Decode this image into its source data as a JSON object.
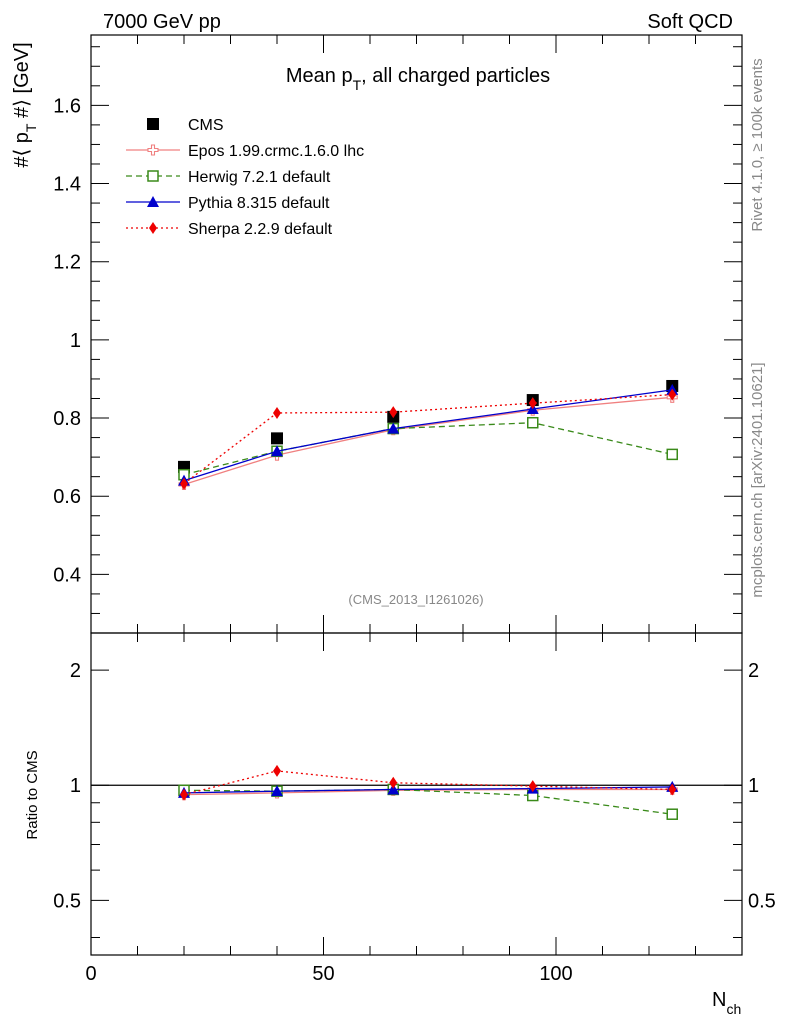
{
  "header": {
    "left": "7000 GeV pp",
    "right": "Soft QCD"
  },
  "side_labels": {
    "rivet": "Rivet 4.1.0, ≥ 100k events",
    "mcplots": "mcplots.cern.ch [arXiv:2401.10621]"
  },
  "chart_data": [
    {
      "type": "scatter",
      "panel": "main",
      "title": "Mean p_T, all charged particles",
      "title_parts": {
        "pre": "Mean p",
        "sub": "T",
        "post": ", all charged particles"
      },
      "ylabel_parts": {
        "pre": "#⟨ p",
        "sub": "T",
        "post": " #⟩ [GeV]"
      },
      "watermark": "(CMS_2013_I1261026)",
      "xlim": [
        0,
        140
      ],
      "ylim": [
        0.25,
        1.78
      ],
      "x_ticks": [
        0,
        50,
        100
      ],
      "y_ticks": [
        0.4,
        0.6,
        0.8,
        1.0,
        1.2,
        1.4,
        1.6
      ],
      "y_tick_labels": [
        "0.4",
        "0.6",
        "0.8",
        "1",
        "1.2",
        "1.4",
        "1.6"
      ],
      "legend_position": "top-left",
      "series": [
        {
          "name": "CMS",
          "color": "#000000",
          "marker": "square-filled",
          "line": "none",
          "x": [
            20,
            40,
            65,
            95,
            125
          ],
          "y": [
            0.675,
            0.748,
            0.803,
            0.846,
            0.882
          ]
        },
        {
          "name": "Epos 1.99.crmc.1.6.0 lhc",
          "color": "#f08080",
          "marker": "cross-open",
          "line": "solid",
          "x": [
            20,
            40,
            65,
            95,
            125
          ],
          "y": [
            0.63,
            0.705,
            0.77,
            0.82,
            0.853
          ]
        },
        {
          "name": "Herwig 7.2.1 default",
          "color": "#3a8a1a",
          "marker": "square-open",
          "line": "dashed",
          "x": [
            20,
            40,
            65,
            95,
            125
          ],
          "y": [
            0.655,
            0.715,
            0.773,
            0.788,
            0.707
          ]
        },
        {
          "name": "Pythia 8.315 default",
          "color": "#0000cc",
          "marker": "triangle-filled",
          "line": "solid",
          "x": [
            20,
            40,
            65,
            95,
            125
          ],
          "y": [
            0.64,
            0.715,
            0.773,
            0.823,
            0.872
          ]
        },
        {
          "name": "Sherpa 2.2.9 default",
          "color": "#ee0000",
          "marker": "diamond-filled",
          "line": "dotted",
          "x": [
            20,
            40,
            65,
            95,
            125
          ],
          "y": [
            0.632,
            0.813,
            0.815,
            0.838,
            0.86
          ]
        }
      ]
    },
    {
      "type": "scatter",
      "panel": "ratio",
      "ylabel": "Ratio to CMS",
      "xlabel_parts": {
        "pre": "N",
        "sub": "ch"
      },
      "xlim": [
        0,
        140
      ],
      "ylim": [
        0.36,
        2.5
      ],
      "yscale": "log",
      "reference_line": 1,
      "x_ticks": [
        0,
        50,
        100
      ],
      "x_tick_labels": [
        "0",
        "50",
        "100"
      ],
      "y_ticks": [
        0.5,
        1,
        2
      ],
      "y_tick_labels": [
        "0.5",
        "1",
        "2"
      ],
      "series": [
        {
          "name": "Epos 1.99.crmc.1.6.0 lhc",
          "color": "#f08080",
          "marker": "cross-open",
          "line": "solid",
          "x": [
            20,
            40,
            65,
            95,
            125
          ],
          "y": [
            0.945,
            0.955,
            0.97,
            0.975,
            0.975
          ]
        },
        {
          "name": "Herwig 7.2.1 default",
          "color": "#3a8a1a",
          "marker": "square-open",
          "line": "dashed",
          "x": [
            20,
            40,
            65,
            95,
            125
          ],
          "y": [
            0.97,
            0.965,
            0.975,
            0.94,
            0.84
          ]
        },
        {
          "name": "Pythia 8.315 default",
          "color": "#0000cc",
          "marker": "triangle-filled",
          "line": "solid",
          "x": [
            20,
            40,
            65,
            95,
            125
          ],
          "y": [
            0.955,
            0.965,
            0.975,
            0.98,
            0.99
          ]
        },
        {
          "name": "Sherpa 2.2.9 default",
          "color": "#ee0000",
          "marker": "diamond-filled",
          "line": "dotted",
          "x": [
            20,
            40,
            65,
            95,
            125
          ],
          "y": [
            0.945,
            1.09,
            1.015,
            0.995,
            0.975
          ]
        }
      ]
    }
  ]
}
